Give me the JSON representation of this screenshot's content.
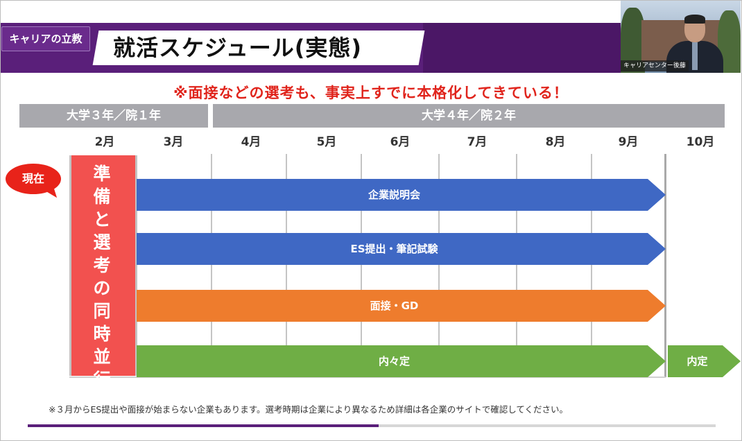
{
  "header": {
    "brand": "キャリアの立教",
    "title": "就活スケジュール(実態)"
  },
  "video": {
    "caption": "キャリアセンター後藤"
  },
  "note": "※面接などの選考も、事実上すでに本格化してきている！",
  "years": {
    "year1": "大学３年／院１年",
    "year2": "大学４年／院２年"
  },
  "months": [
    "2月",
    "3月",
    "4月",
    "5月",
    "6月",
    "7月",
    "8月",
    "9月",
    "10月"
  ],
  "current_label": "現在",
  "prep_label": "準備と選考の同時並行期！",
  "arrows": {
    "briefing": "企業説明会",
    "es_test": "ES提出・筆記試験",
    "interview": "面接・GD",
    "nainaitei": "内々定",
    "naitei": "内定"
  },
  "footnote": "※３月からES提出や面接が始まらない企業もあります。選考時期は企業により異なるため詳細は各企業のサイトで確認してください。",
  "progress": {
    "fraction": 0.51
  },
  "colors": {
    "header_purple": "#5a1f7a",
    "note_red": "#e0241c",
    "blue": "#3f68c4",
    "orange": "#ee7c2d",
    "green": "#6fae45",
    "prep_red": "#f2514f"
  }
}
